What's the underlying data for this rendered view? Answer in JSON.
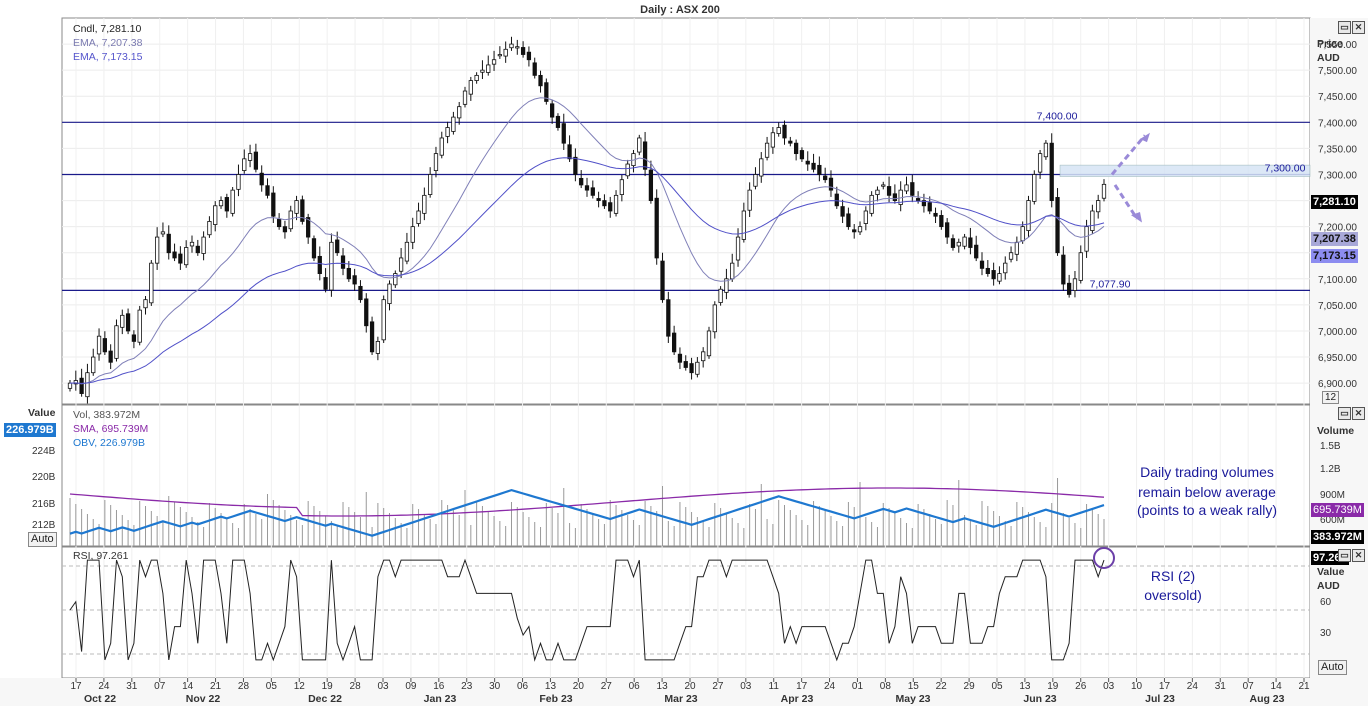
{
  "title": "Daily : ASX 200",
  "price_panel": {
    "axis_title": [
      "Price",
      "AUD"
    ],
    "legend": [
      {
        "label": "Cndl, 7,281.10",
        "color": "#222222"
      },
      {
        "label": "EMA, 7,207.38",
        "color": "#7a7ab0"
      },
      {
        "label": "EMA, 7,173.15",
        "color": "#5555cc"
      }
    ],
    "ticks": [
      "7,550.00",
      "7,500.00",
      "7,450.00",
      "7,400.00",
      "7,350.00",
      "7,300.00",
      "7,250.00",
      "7,200.00",
      "7,150.00",
      "7,100.00",
      "7,050.00",
      "7,000.00",
      "6,950.00",
      "6,900.00"
    ],
    "levels": [
      {
        "label": "7,400.00",
        "value": 7400
      },
      {
        "label": "7,300.00",
        "value": 7300
      },
      {
        "label": "7,077.90",
        "value": 7077.9
      }
    ],
    "tags": [
      {
        "label": "7,281.10",
        "bg": "#000000",
        "fg": "#ffffff"
      },
      {
        "label": "7,207.38",
        "bg": "#a8a8d8",
        "fg": "#111111"
      },
      {
        "label": "7,173.15",
        "bg": "#8c8cf0",
        "fg": "#111111"
      }
    ],
    "page_label": "12"
  },
  "volume_panel": {
    "left_title": "Value",
    "axis_title": "Volume",
    "legend": [
      {
        "label": "Vol, 383.972M",
        "color": "#555555"
      },
      {
        "label": "SMA, 695.739M",
        "color": "#8a2aa8"
      },
      {
        "label": "OBV, 226.979B",
        "color": "#1e78d0"
      }
    ],
    "left_ticks": [
      "224B",
      "220B",
      "216B",
      "212B"
    ],
    "right_ticks": [
      "1.5B",
      "1.2B",
      "900M",
      "600M"
    ],
    "left_tag": "226.979B",
    "tags": [
      {
        "label": "695.739M",
        "bg": "#8a2aa8",
        "fg": "#ffffff"
      },
      {
        "label": "383.972M",
        "bg": "#000000",
        "fg": "#ffffff"
      }
    ],
    "auto_label": "Auto",
    "annotation": [
      "Daily trading volumes",
      "remain below average",
      "(points to a weak rally)"
    ]
  },
  "rsi_panel": {
    "legend": "RSI, 97.261",
    "axis_title": [
      "Value",
      "AUD"
    ],
    "ticks": [
      "60",
      "30"
    ],
    "tag": "97.261",
    "auto_label": "Auto",
    "annotation": [
      "RSI (2)",
      "oversold)"
    ]
  },
  "x_axis": {
    "day_ticks": [
      "17",
      "24",
      "31",
      "07",
      "14",
      "21",
      "28",
      "05",
      "12",
      "19",
      "28",
      "03",
      "09",
      "16",
      "23",
      "30",
      "06",
      "13",
      "20",
      "27",
      "06",
      "13",
      "20",
      "27",
      "03",
      "11",
      "17",
      "24",
      "01",
      "08",
      "15",
      "22",
      "29",
      "05",
      "13",
      "19",
      "26",
      "03",
      "10",
      "17",
      "24",
      "31",
      "07",
      "14",
      "21"
    ],
    "months": [
      "Oct 22",
      "Nov 22",
      "Dec 22",
      "Jan 23",
      "Feb 23",
      "Mar 23",
      "Apr 23",
      "May 23",
      "Jun 23",
      "Jul 23",
      "Aug 23"
    ]
  },
  "chart_data": {
    "type": "candlestick",
    "title": "Daily : ASX 200",
    "y_range": [
      6860,
      7600
    ],
    "last_close": 7281.1,
    "ema_fast_last": 7207.38,
    "ema_slow_last": 7173.15,
    "horizontal_levels": [
      7400.0,
      7300.0,
      7077.9
    ],
    "closes": [
      6900,
      6905,
      6880,
      6920,
      6950,
      6990,
      6960,
      6940,
      7010,
      7030,
      7000,
      6980,
      7040,
      7060,
      7130,
      7180,
      7190,
      7150,
      7140,
      7130,
      7160,
      7170,
      7150,
      7180,
      7210,
      7240,
      7250,
      7230,
      7270,
      7300,
      7330,
      7340,
      7310,
      7280,
      7260,
      7220,
      7200,
      7190,
      7230,
      7250,
      7210,
      7180,
      7140,
      7110,
      7080,
      7170,
      7150,
      7120,
      7100,
      7090,
      7060,
      7010,
      6960,
      6980,
      7060,
      7090,
      7110,
      7140,
      7170,
      7200,
      7230,
      7260,
      7300,
      7340,
      7370,
      7390,
      7410,
      7430,
      7460,
      7480,
      7490,
      7500,
      7510,
      7520,
      7530,
      7540,
      7550,
      7545,
      7530,
      7520,
      7490,
      7470,
      7440,
      7410,
      7390,
      7360,
      7330,
      7300,
      7280,
      7270,
      7260,
      7250,
      7240,
      7230,
      7260,
      7290,
      7320,
      7340,
      7370,
      7310,
      7250,
      7140,
      7060,
      6990,
      6960,
      6940,
      6930,
      6920,
      6940,
      6960,
      7000,
      7050,
      7080,
      7100,
      7130,
      7180,
      7230,
      7270,
      7300,
      7330,
      7360,
      7380,
      7390,
      7370,
      7360,
      7340,
      7330,
      7320,
      7310,
      7300,
      7290,
      7270,
      7240,
      7220,
      7200,
      7190,
      7200,
      7230,
      7260,
      7270,
      7280,
      7260,
      7250,
      7270,
      7280,
      7260,
      7250,
      7240,
      7230,
      7220,
      7200,
      7180,
      7160,
      7170,
      7180,
      7160,
      7140,
      7120,
      7110,
      7100,
      7110,
      7130,
      7150,
      7170,
      7200,
      7250,
      7300,
      7340,
      7360,
      7250,
      7150,
      7090,
      7070,
      7100,
      7150,
      7200,
      7230,
      7250,
      7281.1
    ],
    "rsi_last": 97.261,
    "volume": {
      "last": "383.972M",
      "sma_last": "695.739M",
      "obv_last": "226.979B"
    },
    "x_axis_labels": [
      "Oct 22",
      "Nov 22",
      "Dec 22",
      "Jan 23",
      "Feb 23",
      "Mar 23",
      "Apr 23",
      "May 23",
      "Jun 23",
      "Jul 23",
      "Aug 23"
    ]
  }
}
